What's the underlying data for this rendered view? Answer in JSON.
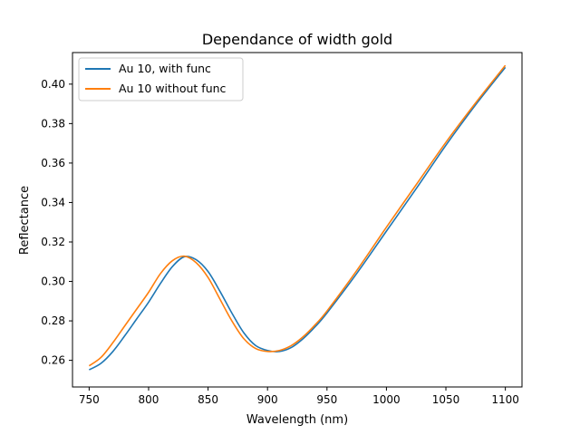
{
  "chart_data": {
    "type": "line",
    "title": "Dependance of width gold",
    "xlabel": "Wavelength (nm)",
    "ylabel": "Reflectance",
    "xlim": [
      736,
      1114
    ],
    "ylim": [
      0.2465,
      0.416
    ],
    "xticks": [
      750,
      800,
      850,
      900,
      950,
      1000,
      1050,
      1100
    ],
    "yticks": [
      0.26,
      0.28,
      0.3,
      0.32,
      0.34,
      0.36,
      0.38,
      0.4
    ],
    "ytick_labels": [
      "0.26",
      "0.28",
      "0.30",
      "0.32",
      "0.34",
      "0.36",
      "0.38",
      "0.40"
    ],
    "grid": false,
    "legend": "top-left",
    "series": [
      {
        "name": "Au 10, with func",
        "color": "#1f77b4",
        "x": [
          750,
          760,
          770,
          780,
          790,
          800,
          810,
          820,
          830,
          840,
          850,
          860,
          870,
          880,
          890,
          900,
          910,
          920,
          930,
          940,
          950,
          975,
          1000,
          1025,
          1050,
          1075,
          1100
        ],
        "y": [
          0.2552,
          0.2585,
          0.2645,
          0.2725,
          0.281,
          0.2895,
          0.299,
          0.3075,
          0.3125,
          0.311,
          0.305,
          0.295,
          0.284,
          0.274,
          0.2675,
          0.265,
          0.2645,
          0.2665,
          0.271,
          0.277,
          0.284,
          0.304,
          0.3255,
          0.347,
          0.369,
          0.3895,
          0.4085
        ]
      },
      {
        "name": "Au 10 without func",
        "color": "#ff7f0e",
        "x": [
          750,
          760,
          770,
          780,
          790,
          800,
          810,
          820,
          830,
          840,
          850,
          860,
          870,
          880,
          890,
          900,
          910,
          920,
          930,
          940,
          950,
          975,
          1000,
          1025,
          1050,
          1075,
          1100
        ],
        "y": [
          0.2572,
          0.2615,
          0.269,
          0.2775,
          0.286,
          0.2945,
          0.304,
          0.3105,
          0.3128,
          0.3095,
          0.302,
          0.291,
          0.28,
          0.271,
          0.266,
          0.2645,
          0.265,
          0.2675,
          0.272,
          0.278,
          0.285,
          0.3055,
          0.3275,
          0.349,
          0.3705,
          0.3905,
          0.4095
        ]
      }
    ]
  }
}
